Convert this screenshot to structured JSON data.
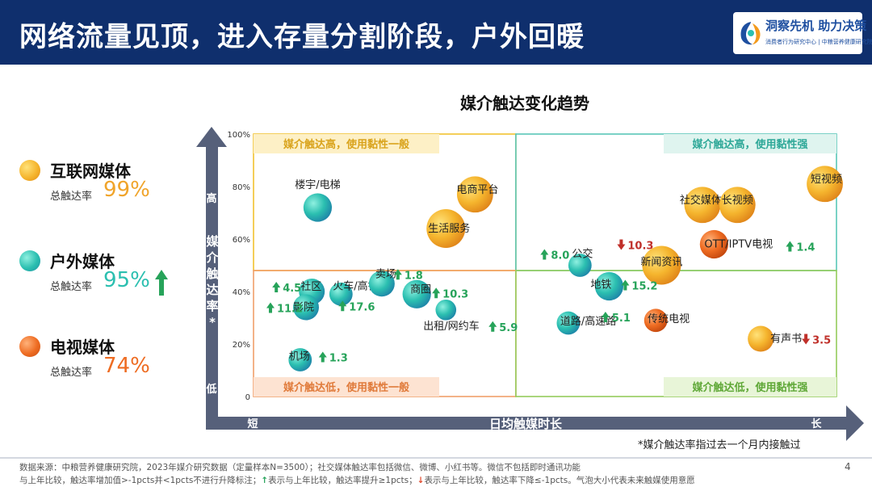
{
  "header": {
    "title": "网络流量见顶，进入存量分割阶段，户外回暖",
    "logo_slogan": "洞察先机 助力决策",
    "logo_subtitle": "消费者行为研究中心 | 中粮营养健康研究院"
  },
  "legend": {
    "rate_label": "总触达率",
    "items": [
      {
        "name": "互联网媒体",
        "rate": "99%",
        "color": "#f5b52e",
        "arrow": ""
      },
      {
        "name": "户外媒体",
        "rate": "95%",
        "color": "#2bbfb0",
        "arrow": "up"
      },
      {
        "name": "电视媒体",
        "rate": "74%",
        "color": "#ee6c22",
        "arrow": ""
      }
    ]
  },
  "colors": {
    "up": "#27a35a",
    "down": "#c0302a",
    "axis": "#56607a",
    "quad_tl": "#f2c230",
    "quad_tr": "#59c6b8",
    "quad_bl": "#f0a06a",
    "quad_br": "#95cc5c"
  },
  "chart_data": {
    "type": "scatter",
    "title": "媒介触达变化趋势",
    "xlabel": "日均触媒时长",
    "x_low_label": "短",
    "x_high_label": "长",
    "ylabel": "媒介触达率*",
    "y_high_label": "高",
    "y_low_label": "低",
    "ylim": [
      0,
      100
    ],
    "yticks": [
      "0",
      "20%",
      "40%",
      "60%",
      "80%",
      "100%"
    ],
    "ytick_values": [
      0,
      20,
      40,
      60,
      80,
      100
    ],
    "x_scale_note": "relative scale 0-100, no tick values printed",
    "xlim": [
      0,
      100
    ],
    "x_mid": 45,
    "y_mid": 48,
    "quadrants": {
      "top_left": "媒介触达高，使用黏性一般",
      "top_right": "媒介触达高，使用黏性强",
      "bottom_left": "媒介触达低，使用黏性一般",
      "bottom_right": "媒介触达低，使用黏性强"
    },
    "points": [
      {
        "name": "楼宇/电梯",
        "category": "outdoor",
        "x": 11,
        "y": 72,
        "size": 1.1,
        "change": "",
        "trend": ""
      },
      {
        "name": "电商平台",
        "category": "internet",
        "x": 38,
        "y": 77,
        "size": 1.4,
        "change": "",
        "trend": ""
      },
      {
        "name": "生活服务",
        "category": "internet",
        "x": 33,
        "y": 64,
        "size": 1.5,
        "change": "",
        "trend": ""
      },
      {
        "name": "社交媒体",
        "category": "internet",
        "x": 77,
        "y": 73,
        "size": 1.4,
        "change": "",
        "trend": ""
      },
      {
        "name": "长视频",
        "category": "internet",
        "x": 83,
        "y": 73,
        "size": 1.4,
        "change": "",
        "trend": ""
      },
      {
        "name": "短视频",
        "category": "internet",
        "x": 98,
        "y": 81,
        "size": 1.4,
        "change": "",
        "trend": ""
      },
      {
        "name": "OTT/IPTV电视",
        "category": "tv",
        "x": 79,
        "y": 58,
        "size": 1.1,
        "change": "1.4",
        "trend": "up"
      },
      {
        "name": "新闻资讯",
        "category": "internet",
        "x": 70,
        "y": 50,
        "size": 1.5,
        "change": "10.3",
        "trend": "down"
      },
      {
        "name": "公交",
        "category": "outdoor",
        "x": 56,
        "y": 50,
        "size": 0.9,
        "change": "8.0",
        "trend": "up"
      },
      {
        "name": "地铁",
        "category": "outdoor",
        "x": 61,
        "y": 42,
        "size": 1.1,
        "change": "15.2",
        "trend": "up"
      },
      {
        "name": "道路/高速路",
        "category": "outdoor",
        "x": 54,
        "y": 28,
        "size": 0.9,
        "change": "5.1",
        "trend": "up"
      },
      {
        "name": "传统电视",
        "category": "tv",
        "x": 69,
        "y": 29,
        "size": 0.9,
        "change": "",
        "trend": ""
      },
      {
        "name": "有声书",
        "category": "internet",
        "x": 87,
        "y": 22,
        "size": 1.0,
        "change": "3.5",
        "trend": "down"
      },
      {
        "name": "社区",
        "category": "outdoor",
        "x": 10,
        "y": 40,
        "size": 1.0,
        "change": "4.5",
        "trend": "up"
      },
      {
        "name": "影院",
        "category": "outdoor",
        "x": 9,
        "y": 34,
        "size": 1.0,
        "change": "11.2",
        "trend": "up"
      },
      {
        "name": "火车/高铁",
        "category": "outdoor",
        "x": 15,
        "y": 39,
        "size": 0.9,
        "change": "17.6",
        "trend": "up"
      },
      {
        "name": "卖场",
        "category": "outdoor",
        "x": 22,
        "y": 43,
        "size": 1.0,
        "change": "1.8",
        "trend": "up"
      },
      {
        "name": "商圈",
        "category": "outdoor",
        "x": 28,
        "y": 39,
        "size": 1.1,
        "change": "10.3",
        "trend": "up"
      },
      {
        "name": "出租/网约车",
        "category": "outdoor",
        "x": 33,
        "y": 33,
        "size": 0.8,
        "change": "5.9",
        "trend": "up"
      },
      {
        "name": "机场",
        "category": "outdoor",
        "x": 8,
        "y": 14,
        "size": 0.9,
        "change": "1.3",
        "trend": "up"
      }
    ]
  },
  "footnote": "*媒介触达率指过去一个月内接触过",
  "source": {
    "line1": "数据来源：中粮营养健康研究院，2023年媒介研究数据（定量样本N=3500）；社交媒体触达率包括微信、微博、小红书等。微信不包括即时通讯功能",
    "line2_a": "与上年比较，触达率增加值>-1pcts并<1pcts不进行升降标注；",
    "line2_up": "↑",
    "line2_b": "表示与上年比较，触达率提升≥1pcts；",
    "line2_down": "↓",
    "line2_c": "表示与上年比较，触达率下降≤-1pcts。气泡大小代表未来触媒使用意愿"
  },
  "page_number": "4"
}
